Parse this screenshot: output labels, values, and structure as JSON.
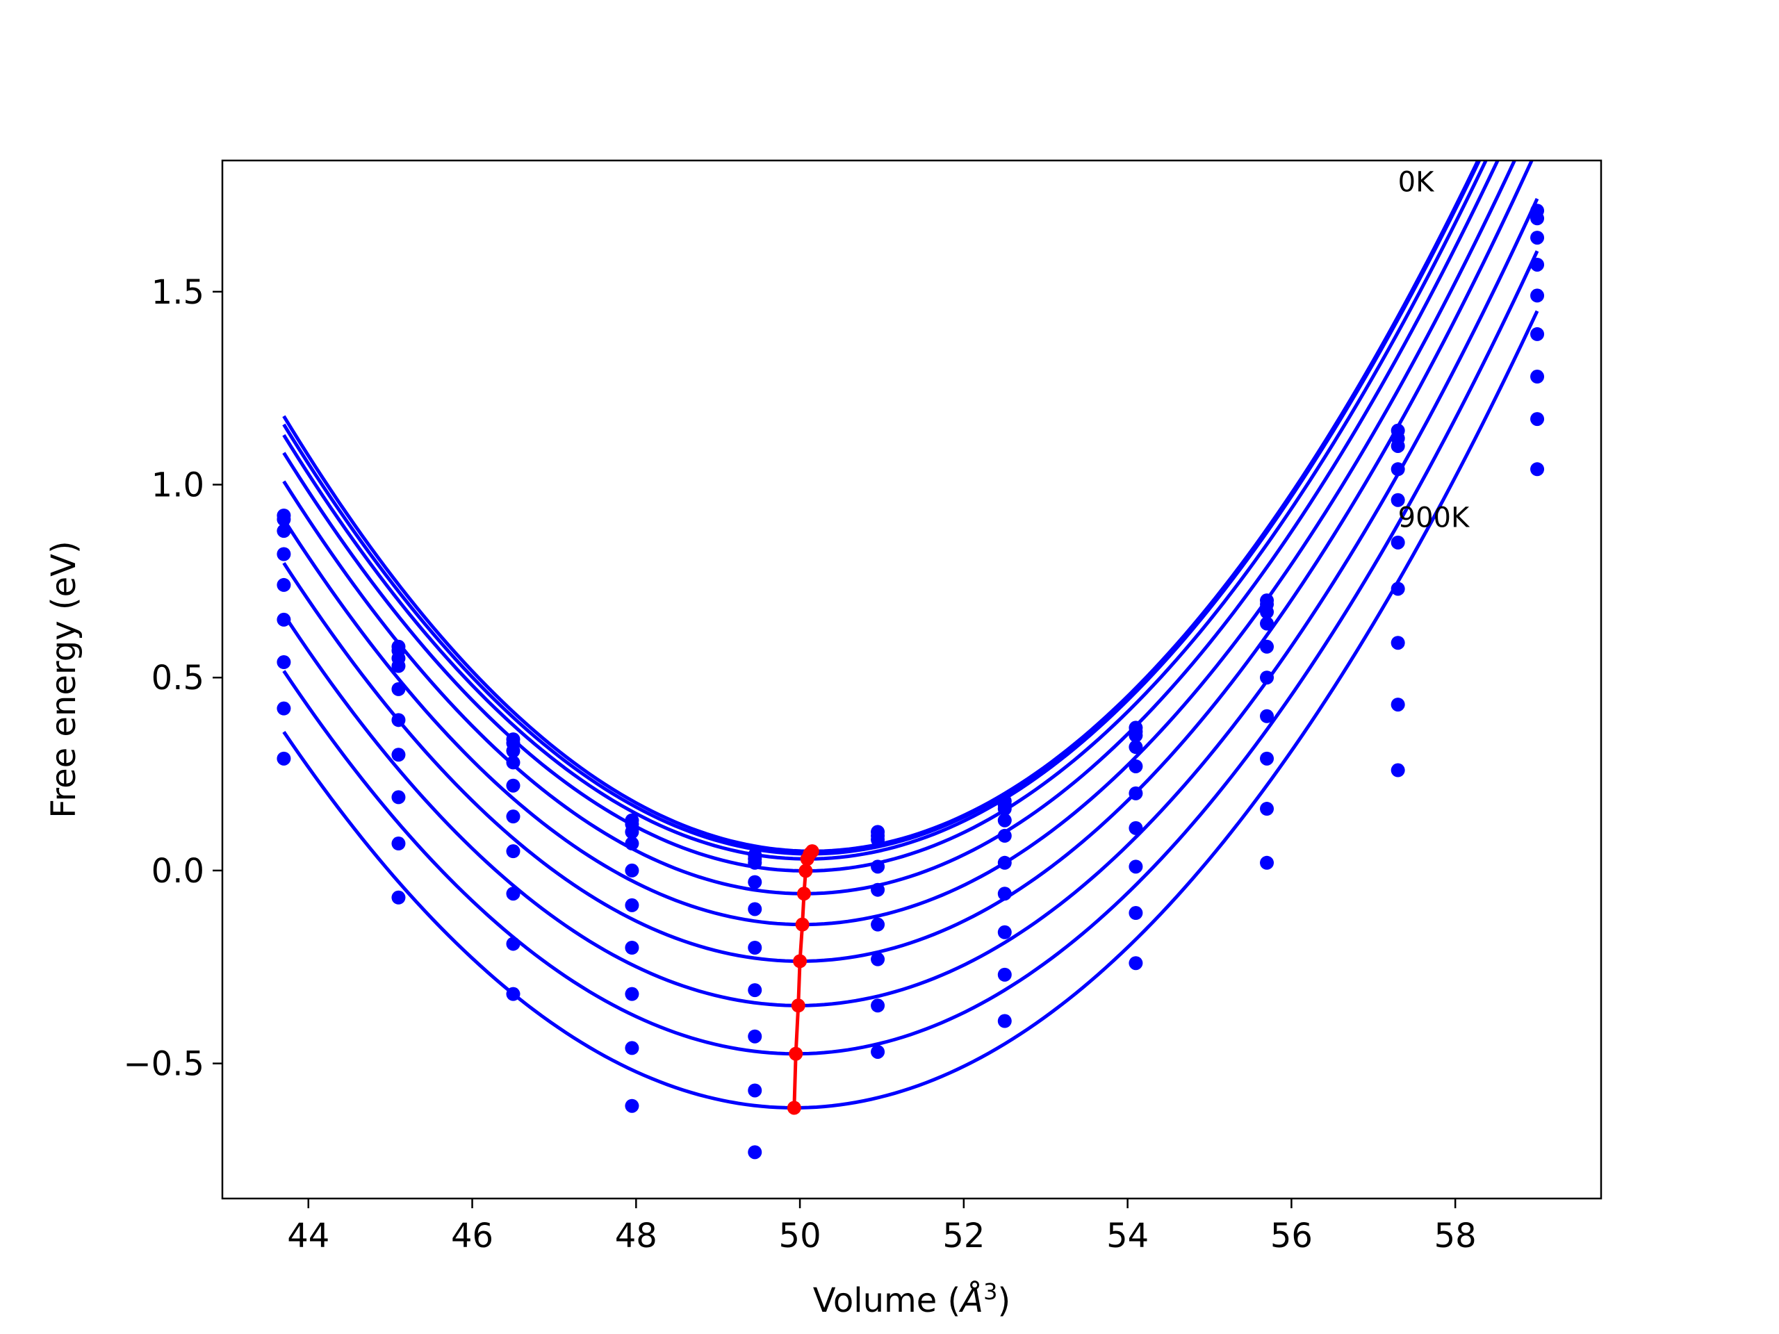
{
  "chart_data": {
    "type": "scatter",
    "xlabel_text": "Volume (",
    "xlabel_unit": "Å",
    "xlabel_sup": "3",
    "xlabel_close": ")",
    "ylabel": "Free energy (eV)",
    "xlim": [
      42.95,
      59.78
    ],
    "ylim": [
      -0.85,
      1.84
    ],
    "x_ticks": [
      44,
      46,
      48,
      50,
      52,
      54,
      56,
      58
    ],
    "x_tick_labels": [
      "44",
      "46",
      "48",
      "50",
      "52",
      "54",
      "56",
      "58"
    ],
    "y_ticks": [
      -0.5,
      0.0,
      0.5,
      1.0,
      1.5
    ],
    "y_tick_labels": [
      "−0.5",
      "0.0",
      "0.5",
      "1.0",
      "1.5"
    ],
    "grid": false,
    "colors": {
      "curves": "#0000ff",
      "points": "#0000ff",
      "minimum_line": "#ff0000",
      "axes": "#000000"
    },
    "volumes": [
      43.7,
      45.1,
      46.5,
      47.95,
      49.45,
      50.95,
      52.5,
      54.1,
      55.7,
      57.3,
      59.0
    ],
    "series": [
      {
        "values": [
          0.92,
          0.58,
          0.34,
          0.13,
          0.04,
          0.1,
          0.18,
          0.37,
          0.7,
          1.14,
          1.71
        ]
      },
      {
        "values": [
          0.91,
          0.57,
          0.33,
          0.12,
          0.03,
          0.09,
          0.17,
          0.36,
          0.69,
          1.12,
          1.69
        ]
      },
      {
        "values": [
          0.88,
          0.55,
          0.31,
          0.1,
          0.02,
          0.08,
          0.16,
          0.35,
          0.67,
          1.1,
          1.64
        ]
      },
      {
        "values": [
          0.82,
          0.53,
          0.28,
          0.07,
          -0.03,
          0.01,
          0.13,
          0.32,
          0.64,
          1.04,
          1.57
        ]
      },
      {
        "values": [
          0.74,
          0.47,
          0.22,
          0.0,
          -0.1,
          -0.05,
          0.09,
          0.27,
          0.58,
          0.96,
          1.49
        ]
      },
      {
        "values": [
          0.65,
          0.39,
          0.14,
          -0.09,
          -0.2,
          -0.14,
          0.02,
          0.2,
          0.5,
          0.85,
          1.39
        ]
      },
      {
        "values": [
          0.54,
          0.3,
          0.05,
          -0.2,
          -0.31,
          -0.23,
          -0.06,
          0.11,
          0.4,
          0.73,
          1.28
        ]
      },
      {
        "values": [
          0.42,
          0.19,
          -0.06,
          -0.32,
          -0.43,
          -0.35,
          -0.16,
          0.01,
          0.29,
          0.59,
          1.17
        ]
      },
      {
        "values": [
          0.29,
          0.07,
          -0.19,
          -0.46,
          -0.57,
          -0.47,
          -0.27,
          -0.11,
          0.16,
          0.43,
          1.04
        ]
      },
      {
        "values": [
          null,
          -0.07,
          -0.32,
          -0.61,
          -0.73,
          null,
          -0.39,
          -0.24,
          0.02,
          0.26,
          null
        ]
      }
    ],
    "fits": [
      {
        "v0": 50.15,
        "e0": 0.05,
        "k": 0.0271
      },
      {
        "v0": 50.12,
        "e0": 0.043,
        "k": 0.027
      },
      {
        "v0": 50.09,
        "e0": 0.03,
        "k": 0.0269
      },
      {
        "v0": 50.07,
        "e0": -0.001,
        "k": 0.0267
      },
      {
        "v0": 50.05,
        "e0": -0.06,
        "k": 0.0265
      },
      {
        "v0": 50.03,
        "e0": -0.14,
        "k": 0.0262
      },
      {
        "v0": 50.0,
        "e0": -0.235,
        "k": 0.026
      },
      {
        "v0": 49.98,
        "e0": -0.35,
        "k": 0.0257
      },
      {
        "v0": 49.95,
        "e0": -0.475,
        "k": 0.0254
      },
      {
        "v0": 49.93,
        "e0": -0.615,
        "k": 0.0251
      }
    ],
    "fit_range": [
      43.7,
      59.0
    ],
    "minima": [
      {
        "x": 50.15,
        "y": 0.05
      },
      {
        "x": 50.12,
        "y": 0.043
      },
      {
        "x": 50.09,
        "y": 0.03
      },
      {
        "x": 50.07,
        "y": -0.001
      },
      {
        "x": 50.05,
        "y": -0.06
      },
      {
        "x": 50.03,
        "y": -0.14
      },
      {
        "x": 50.0,
        "y": -0.235
      },
      {
        "x": 49.98,
        "y": -0.35
      },
      {
        "x": 49.95,
        "y": -0.475
      },
      {
        "x": 49.93,
        "y": -0.615
      }
    ],
    "annotations": [
      {
        "text": "0K",
        "x": 57.3,
        "y": 1.76
      },
      {
        "text": "900K",
        "x": 57.3,
        "y": 0.89
      }
    ]
  }
}
